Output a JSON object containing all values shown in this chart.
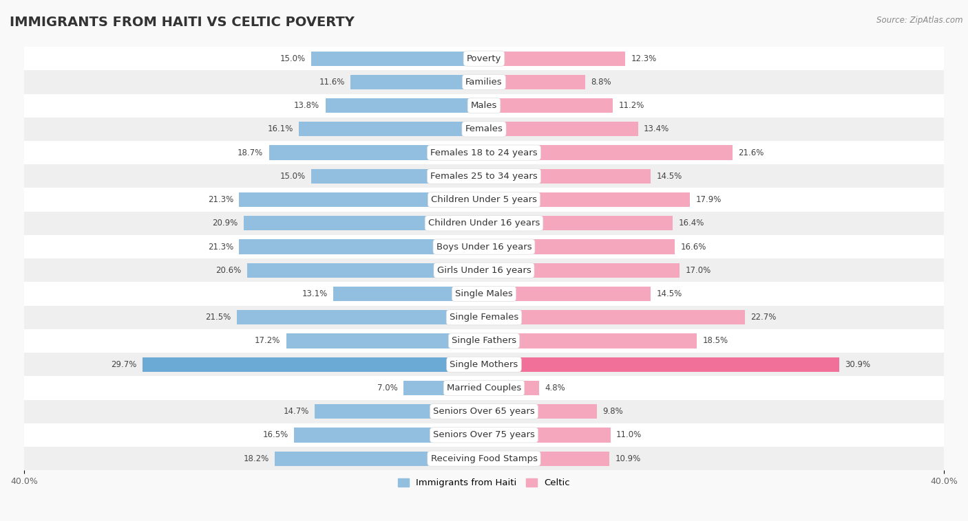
{
  "title": "IMMIGRANTS FROM HAITI VS CELTIC POVERTY",
  "source": "Source: ZipAtlas.com",
  "categories": [
    "Poverty",
    "Families",
    "Males",
    "Females",
    "Females 18 to 24 years",
    "Females 25 to 34 years",
    "Children Under 5 years",
    "Children Under 16 years",
    "Boys Under 16 years",
    "Girls Under 16 years",
    "Single Males",
    "Single Females",
    "Single Fathers",
    "Single Mothers",
    "Married Couples",
    "Seniors Over 65 years",
    "Seniors Over 75 years",
    "Receiving Food Stamps"
  ],
  "haiti_values": [
    15.0,
    11.6,
    13.8,
    16.1,
    18.7,
    15.0,
    21.3,
    20.9,
    21.3,
    20.6,
    13.1,
    21.5,
    17.2,
    29.7,
    7.0,
    14.7,
    16.5,
    18.2
  ],
  "celtic_values": [
    12.3,
    8.8,
    11.2,
    13.4,
    21.6,
    14.5,
    17.9,
    16.4,
    16.6,
    17.0,
    14.5,
    22.7,
    18.5,
    30.9,
    4.8,
    9.8,
    11.0,
    10.9
  ],
  "haiti_color": "#92bfdf",
  "celtic_color": "#f4a7bd",
  "haiti_highlight_color": "#6aaad4",
  "celtic_highlight_color": "#f07099",
  "axis_max": 40.0,
  "background_color": "#f9f9f9",
  "row_color_light": "#ffffff",
  "row_color_dark": "#efefef",
  "bar_height": 0.62,
  "label_fontsize": 9.5,
  "value_fontsize": 8.5,
  "title_fontsize": 14,
  "legend_label_haiti": "Immigrants from Haiti",
  "legend_label_celtic": "Celtic",
  "highlight_row": 13
}
